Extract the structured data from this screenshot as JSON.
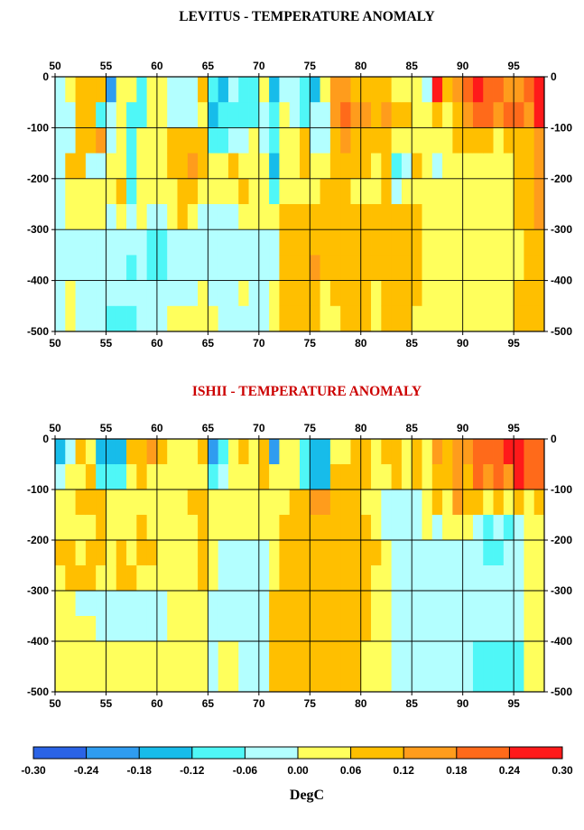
{
  "chart_data": [
    {
      "type": "heatmap",
      "title": "LEVITUS - TEMPERATURE ANOMALY",
      "title_color": "#000000",
      "x_ticks": [
        "50",
        "55",
        "60",
        "65",
        "70",
        "75",
        "80",
        "85",
        "90",
        "95"
      ],
      "y_ticks": [
        "0",
        "-100",
        "-200",
        "-300",
        "-400",
        "-500"
      ],
      "x_range": [
        50,
        98
      ],
      "y_range": [
        0,
        -500
      ],
      "grid": true,
      "x_centers": "year index 50..97 (annual columns)",
      "y_layers": [
        25,
        75,
        125,
        175,
        225,
        275,
        325,
        375,
        425,
        475
      ],
      "values": [
        [
          -0.03,
          -0.03,
          -0.03,
          -0.03,
          -0.03,
          -0.03,
          -0.03,
          -0.03,
          -0.03,
          -0.03
        ],
        [
          0.03,
          -0.03,
          -0.03,
          0.09,
          0.03,
          0.03,
          -0.03,
          -0.03,
          0.03,
          0.03
        ],
        [
          0.09,
          0.09,
          0.09,
          0.09,
          0.03,
          0.03,
          -0.03,
          -0.03,
          -0.03,
          -0.03
        ],
        [
          0.09,
          0.09,
          0.09,
          -0.03,
          0.03,
          0.03,
          -0.03,
          -0.03,
          -0.03,
          -0.03
        ],
        [
          0.09,
          -0.09,
          0.15,
          -0.03,
          0.03,
          0.03,
          -0.03,
          -0.03,
          -0.03,
          -0.03
        ],
        [
          -0.21,
          -0.03,
          -0.03,
          0.03,
          0.03,
          -0.03,
          -0.03,
          -0.03,
          -0.03,
          -0.09
        ],
        [
          0.03,
          0.03,
          0.03,
          0.03,
          0.09,
          0.03,
          -0.03,
          -0.03,
          -0.03,
          -0.09
        ],
        [
          0.03,
          -0.09,
          -0.09,
          -0.09,
          -0.09,
          -0.03,
          -0.03,
          -0.09,
          -0.03,
          -0.09
        ],
        [
          -0.09,
          -0.09,
          0.03,
          0.03,
          0.03,
          0.03,
          -0.03,
          -0.03,
          -0.03,
          -0.03
        ],
        [
          0.03,
          0.03,
          0.03,
          0.03,
          0.03,
          -0.03,
          -0.09,
          -0.09,
          -0.03,
          -0.03
        ],
        [
          0.03,
          0.03,
          0.03,
          0.03,
          0.03,
          -0.03,
          -0.09,
          -0.09,
          -0.03,
          -0.03
        ],
        [
          -0.03,
          -0.03,
          0.09,
          0.09,
          0.03,
          0.03,
          -0.03,
          -0.03,
          -0.03,
          0.03
        ],
        [
          -0.03,
          -0.03,
          0.09,
          0.09,
          0.09,
          0.09,
          -0.03,
          -0.03,
          -0.03,
          0.03
        ],
        [
          -0.03,
          -0.03,
          0.09,
          0.15,
          0.09,
          0.03,
          -0.03,
          -0.03,
          -0.03,
          0.03
        ],
        [
          0.09,
          0.03,
          0.09,
          0.09,
          0.03,
          -0.03,
          -0.03,
          -0.03,
          0.03,
          0.03
        ],
        [
          -0.09,
          -0.15,
          -0.09,
          0.03,
          0.03,
          -0.03,
          -0.03,
          -0.03,
          -0.03,
          0.03
        ],
        [
          -0.15,
          -0.09,
          -0.09,
          0.03,
          0.03,
          -0.03,
          -0.03,
          -0.03,
          -0.03,
          -0.03
        ],
        [
          -0.03,
          -0.09,
          -0.03,
          0.09,
          0.03,
          -0.03,
          -0.03,
          -0.03,
          -0.03,
          -0.03
        ],
        [
          -0.09,
          -0.09,
          -0.03,
          0.03,
          0.09,
          0.03,
          -0.03,
          -0.03,
          0.03,
          -0.03
        ],
        [
          -0.09,
          -0.09,
          0.03,
          0.03,
          0.03,
          0.03,
          -0.03,
          -0.03,
          -0.03,
          -0.03
        ],
        [
          0.03,
          -0.03,
          -0.03,
          0.03,
          0.03,
          0.03,
          -0.03,
          -0.03,
          -0.03,
          -0.03
        ],
        [
          -0.15,
          -0.09,
          -0.09,
          -0.15,
          -0.09,
          0.03,
          -0.03,
          -0.03,
          0.03,
          0.03
        ],
        [
          -0.03,
          0.03,
          0.03,
          0.03,
          0.03,
          0.09,
          0.09,
          0.09,
          0.09,
          0.09
        ],
        [
          -0.03,
          -0.03,
          0.03,
          0.03,
          0.03,
          0.09,
          0.09,
          0.09,
          0.09,
          0.09
        ],
        [
          -0.09,
          -0.09,
          0.09,
          0.09,
          0.03,
          0.09,
          0.09,
          0.09,
          0.09,
          0.09
        ],
        [
          -0.15,
          -0.03,
          -0.03,
          0.03,
          0.03,
          0.09,
          0.09,
          0.15,
          0.09,
          0.09
        ],
        [
          0.03,
          -0.03,
          -0.03,
          0.03,
          0.09,
          0.09,
          0.09,
          0.09,
          0.03,
          0.03
        ],
        [
          0.15,
          0.15,
          0.09,
          0.09,
          0.09,
          0.09,
          0.09,
          0.09,
          0.09,
          0.03
        ],
        [
          0.15,
          0.21,
          0.15,
          0.09,
          0.09,
          0.09,
          0.09,
          0.09,
          0.09,
          0.09
        ],
        [
          0.09,
          0.15,
          0.09,
          0.09,
          0.03,
          0.09,
          0.09,
          0.09,
          0.09,
          0.09
        ],
        [
          0.09,
          0.15,
          0.09,
          0.09,
          0.03,
          0.09,
          0.09,
          0.09,
          0.09,
          0.09
        ],
        [
          0.09,
          0.09,
          0.09,
          0.03,
          0.03,
          0.09,
          0.09,
          0.09,
          0.03,
          0.03
        ],
        [
          0.09,
          0.15,
          0.09,
          0.09,
          0.09,
          0.09,
          0.09,
          0.09,
          0.09,
          0.09
        ],
        [
          0.03,
          0.09,
          0.03,
          -0.09,
          -0.03,
          0.09,
          0.09,
          0.09,
          0.09,
          0.09
        ],
        [
          0.03,
          0.09,
          0.03,
          -0.03,
          0.03,
          0.09,
          0.09,
          0.09,
          0.09,
          0.09
        ],
        [
          0.03,
          0.03,
          0.03,
          0.09,
          0.03,
          0.09,
          0.09,
          0.09,
          0.09,
          0.03
        ],
        [
          -0.03,
          0.03,
          0.03,
          0.03,
          0.03,
          0.03,
          0.03,
          0.03,
          0.03,
          0.03
        ],
        [
          0.24,
          0.09,
          0.03,
          -0.03,
          0.03,
          0.03,
          0.03,
          0.03,
          0.03,
          0.03
        ],
        [
          0.09,
          0.03,
          0.03,
          0.03,
          0.03,
          0.03,
          0.03,
          0.03,
          0.03,
          0.03
        ],
        [
          0.15,
          0.09,
          0.09,
          0.03,
          0.03,
          0.03,
          0.03,
          0.03,
          0.03,
          0.03
        ],
        [
          0.21,
          0.15,
          0.09,
          0.03,
          0.03,
          0.03,
          0.03,
          0.03,
          0.03,
          0.03
        ],
        [
          0.24,
          0.21,
          0.09,
          0.03,
          0.03,
          0.03,
          0.03,
          0.03,
          0.03,
          0.03
        ],
        [
          0.18,
          0.21,
          0.09,
          0.03,
          0.03,
          0.03,
          0.03,
          0.03,
          0.03,
          0.03
        ],
        [
          0.21,
          0.15,
          0.03,
          0.03,
          0.03,
          0.03,
          0.03,
          0.03,
          0.03,
          0.03
        ],
        [
          0.15,
          0.21,
          0.09,
          0.03,
          0.03,
          0.03,
          0.03,
          0.03,
          0.03,
          0.03
        ],
        [
          0.15,
          0.21,
          0.09,
          0.09,
          0.09,
          0.09,
          0.03,
          0.03,
          0.09,
          0.09
        ],
        [
          0.21,
          0.15,
          0.09,
          0.09,
          0.09,
          0.09,
          0.09,
          0.09,
          0.09,
          0.09
        ],
        [
          0.27,
          0.27,
          0.15,
          0.15,
          0.15,
          0.15,
          0.09,
          0.09,
          0.09,
          0.09
        ]
      ]
    },
    {
      "type": "heatmap",
      "title": "ISHII - TEMPERATURE ANOMALY",
      "title_color": "#cc0000",
      "x_ticks": [
        "50",
        "55",
        "60",
        "65",
        "70",
        "75",
        "80",
        "85",
        "90",
        "95"
      ],
      "y_ticks": [
        "0",
        "-100",
        "-200",
        "-300",
        "-400",
        "-500"
      ],
      "x_range": [
        50,
        98
      ],
      "y_range": [
        0,
        -500
      ],
      "grid": true,
      "y_layers": [
        25,
        75,
        125,
        175,
        225,
        275,
        325,
        375,
        425,
        475
      ],
      "values": [
        [
          -0.15,
          -0.03,
          0.03,
          0.03,
          0.09,
          0.03,
          0.03,
          0.03,
          0.03,
          0.03
        ],
        [
          -0.03,
          0.03,
          0.03,
          0.03,
          0.09,
          0.09,
          0.03,
          0.03,
          0.03,
          0.03
        ],
        [
          0.09,
          0.03,
          0.09,
          0.03,
          0.03,
          0.09,
          -0.03,
          0.03,
          0.03,
          0.03
        ],
        [
          0.03,
          0.09,
          0.09,
          0.03,
          0.09,
          0.09,
          -0.03,
          0.03,
          0.03,
          0.03
        ],
        [
          -0.15,
          -0.09,
          0.09,
          0.09,
          0.09,
          0.03,
          -0.03,
          -0.03,
          0.03,
          0.03
        ],
        [
          -0.15,
          -0.09,
          0.03,
          0.03,
          0.03,
          0.03,
          -0.03,
          -0.03,
          0.03,
          0.03
        ],
        [
          -0.15,
          -0.09,
          0.03,
          0.03,
          0.09,
          0.09,
          -0.03,
          -0.03,
          0.03,
          0.03
        ],
        [
          0.09,
          0.03,
          0.03,
          0.03,
          0.03,
          0.09,
          -0.03,
          -0.03,
          0.03,
          0.03
        ],
        [
          0.09,
          0.09,
          0.03,
          0.09,
          0.09,
          0.03,
          -0.03,
          -0.03,
          0.03,
          0.03
        ],
        [
          0.15,
          0.03,
          0.03,
          0.03,
          0.09,
          0.03,
          -0.03,
          -0.03,
          0.03,
          0.03
        ],
        [
          0.09,
          0.03,
          0.03,
          0.03,
          0.03,
          0.03,
          -0.03,
          -0.03,
          0.03,
          0.03
        ],
        [
          0.03,
          0.03,
          0.03,
          0.03,
          0.03,
          0.03,
          0.03,
          0.03,
          0.03,
          0.03
        ],
        [
          0.03,
          0.03,
          0.03,
          0.03,
          0.03,
          0.03,
          0.03,
          0.03,
          0.03,
          0.03
        ],
        [
          0.03,
          0.03,
          0.09,
          0.03,
          0.03,
          0.03,
          0.03,
          0.03,
          0.03,
          0.03
        ],
        [
          0.09,
          0.03,
          0.09,
          0.09,
          0.09,
          0.09,
          0.03,
          0.03,
          0.03,
          0.03
        ],
        [
          -0.21,
          -0.09,
          0.03,
          0.03,
          0.03,
          0.03,
          -0.03,
          -0.03,
          -0.03,
          -0.03
        ],
        [
          -0.09,
          -0.03,
          0.03,
          0.03,
          -0.03,
          -0.03,
          -0.03,
          -0.03,
          0.03,
          0.03
        ],
        [
          0.03,
          0.03,
          0.03,
          0.03,
          -0.03,
          -0.03,
          -0.03,
          -0.03,
          0.03,
          0.03
        ],
        [
          0.09,
          0.03,
          0.03,
          0.03,
          -0.03,
          -0.03,
          -0.03,
          -0.03,
          -0.03,
          -0.03
        ],
        [
          0.03,
          0.03,
          0.03,
          0.03,
          -0.03,
          -0.03,
          -0.03,
          -0.03,
          -0.03,
          -0.03
        ],
        [
          0.09,
          0.09,
          0.03,
          0.03,
          -0.03,
          -0.03,
          -0.03,
          -0.03,
          -0.03,
          -0.03
        ],
        [
          -0.24,
          0.03,
          0.03,
          0.03,
          0.03,
          0.03,
          0.09,
          0.09,
          0.09,
          0.09
        ],
        [
          0.03,
          0.03,
          0.03,
          0.09,
          0.09,
          0.09,
          0.09,
          0.09,
          0.09,
          0.09
        ],
        [
          0.03,
          0.03,
          0.09,
          0.09,
          0.09,
          0.09,
          0.09,
          0.09,
          0.09,
          0.09
        ],
        [
          -0.09,
          -0.09,
          0.09,
          0.09,
          0.09,
          0.09,
          0.09,
          0.09,
          0.09,
          0.09
        ],
        [
          -0.15,
          -0.15,
          0.15,
          0.09,
          0.09,
          0.09,
          0.09,
          0.09,
          0.09,
          0.09
        ],
        [
          -0.15,
          -0.15,
          0.15,
          0.09,
          0.09,
          0.09,
          0.09,
          0.09,
          0.09,
          0.09
        ],
        [
          0.03,
          0.09,
          0.09,
          0.09,
          0.09,
          0.09,
          0.09,
          0.09,
          0.09,
          0.09
        ],
        [
          0.03,
          0.09,
          0.09,
          0.09,
          0.09,
          0.09,
          0.09,
          0.09,
          0.09,
          0.09
        ],
        [
          0.09,
          0.09,
          0.09,
          0.09,
          0.09,
          0.09,
          0.09,
          0.09,
          0.09,
          0.09
        ],
        [
          0.09,
          0.09,
          0.03,
          0.09,
          0.09,
          0.09,
          0.09,
          0.09,
          0.03,
          0.03
        ],
        [
          0.03,
          0.03,
          0.03,
          0.03,
          0.09,
          0.03,
          0.03,
          0.03,
          0.03,
          0.03
        ],
        [
          0.09,
          0.03,
          -0.03,
          -0.03,
          0.03,
          0.03,
          0.03,
          0.03,
          0.03,
          0.03
        ],
        [
          0.09,
          0.09,
          -0.03,
          -0.03,
          -0.03,
          -0.03,
          -0.03,
          -0.03,
          -0.03,
          -0.03
        ],
        [
          0.03,
          0.03,
          -0.03,
          -0.03,
          -0.03,
          -0.03,
          -0.03,
          -0.03,
          -0.03,
          -0.03
        ],
        [
          0.09,
          0.09,
          -0.03,
          -0.03,
          -0.03,
          -0.03,
          -0.03,
          -0.03,
          -0.03,
          -0.03
        ],
        [
          0.03,
          0.03,
          0.03,
          0.03,
          -0.03,
          -0.03,
          -0.03,
          -0.03,
          -0.03,
          -0.03
        ],
        [
          0.15,
          0.09,
          0.09,
          -0.03,
          -0.03,
          -0.03,
          -0.03,
          -0.03,
          -0.03,
          -0.03
        ],
        [
          0.09,
          0.09,
          0.03,
          0.03,
          -0.03,
          -0.03,
          -0.03,
          -0.03,
          -0.03,
          -0.03
        ],
        [
          0.15,
          0.15,
          0.15,
          0.03,
          -0.03,
          -0.03,
          -0.03,
          -0.03,
          -0.03,
          -0.03
        ],
        [
          0.15,
          0.09,
          0.09,
          0.03,
          -0.03,
          -0.03,
          -0.03,
          -0.03,
          -0.03,
          -0.03
        ],
        [
          0.21,
          0.21,
          0.09,
          -0.03,
          -0.03,
          -0.03,
          -0.03,
          -0.03,
          -0.09,
          -0.09
        ],
        [
          0.21,
          0.15,
          0.03,
          -0.09,
          -0.09,
          -0.03,
          -0.03,
          -0.03,
          -0.09,
          -0.09
        ],
        [
          0.21,
          0.21,
          0.09,
          -0.03,
          -0.09,
          -0.03,
          -0.03,
          -0.03,
          -0.09,
          -0.09
        ],
        [
          0.24,
          0.15,
          0.03,
          -0.09,
          -0.03,
          -0.03,
          -0.03,
          -0.03,
          -0.09,
          -0.09
        ],
        [
          0.27,
          0.27,
          0.09,
          -0.03,
          -0.03,
          -0.03,
          -0.03,
          -0.03,
          -0.09,
          -0.09
        ],
        [
          0.18,
          0.21,
          0.03,
          0.03,
          0.03,
          0.03,
          0.03,
          0.03,
          0.03,
          0.03
        ],
        [
          0.21,
          0.18,
          0.09,
          0.03,
          0.03,
          0.03,
          0.03,
          0.03,
          0.03,
          0.03
        ]
      ]
    }
  ],
  "colorbar": {
    "label": "DegC",
    "ticks": [
      "-0.30",
      "-0.24",
      "-0.18",
      "-0.12",
      "-0.06",
      "0.00",
      "0.06",
      "0.12",
      "0.18",
      "0.24",
      "0.30"
    ],
    "bin_edges": [
      -0.3,
      -0.24,
      -0.18,
      -0.12,
      -0.06,
      0.0,
      0.06,
      0.12,
      0.18,
      0.24,
      0.3
    ],
    "colors": [
      "#2a63e6",
      "#2f9cf0",
      "#17bcea",
      "#4ff7f7",
      "#b3ffff",
      "#ffff5c",
      "#ffbf00",
      "#ff9c1c",
      "#ff6a1a",
      "#ff1a1a"
    ]
  }
}
